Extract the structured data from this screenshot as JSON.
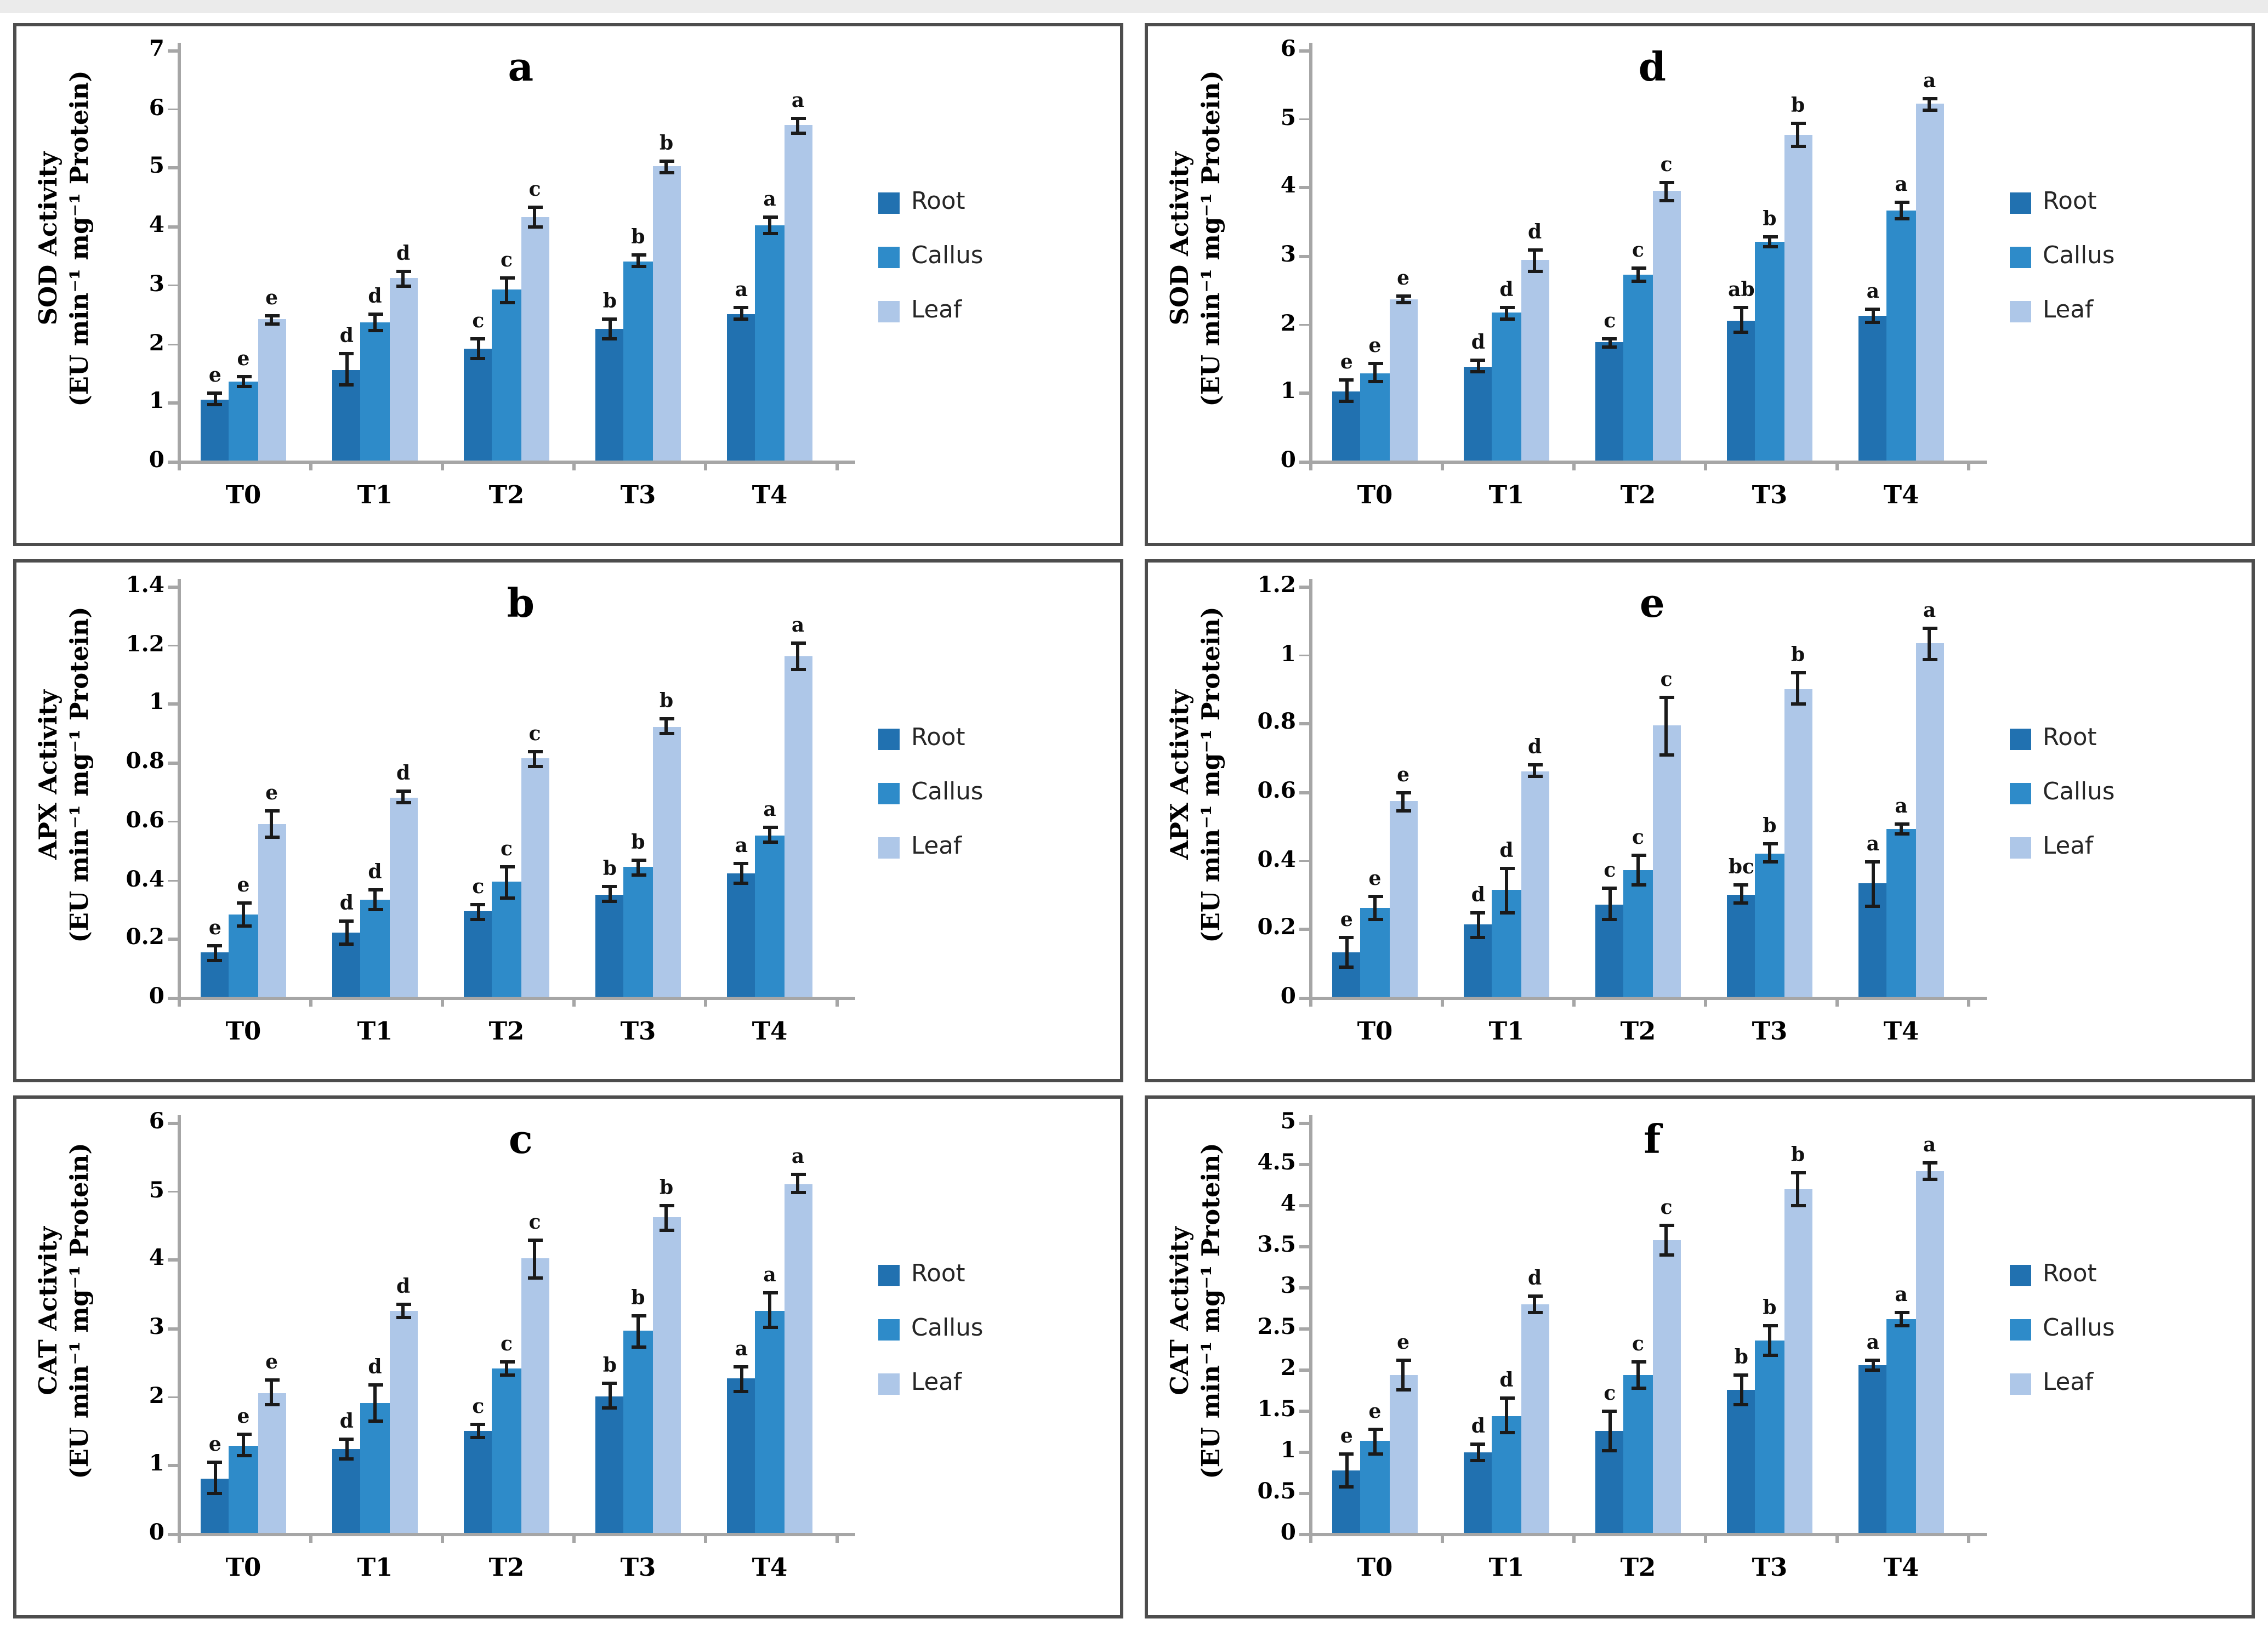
{
  "colors": {
    "root": "#2171B0",
    "callus": "#2E8BC9",
    "leaf": "#AEC7E8",
    "error_bar": "#1a1a1a",
    "axis": "#a6a6a6",
    "panel_border": "#4d4d4d"
  },
  "chart_data": [
    {
      "id": "a",
      "type": "bar",
      "panel_label": "a",
      "ylabel": "SOD Activity",
      "ylabel_units": "(EU min⁻¹ mg⁻¹ Protein)",
      "categories": [
        "T0",
        "T1",
        "T2",
        "T3",
        "T4"
      ],
      "ylim": [
        0,
        7
      ],
      "yticks": [
        0,
        1,
        2,
        3,
        4,
        5,
        6,
        7
      ],
      "ytick_labels": [
        "0",
        "1",
        "2",
        "3",
        "4",
        "5",
        "6",
        "7"
      ],
      "grid": false,
      "legend_position": "right",
      "series": [
        {
          "name": "Root",
          "values": [
            1.05,
            1.55,
            1.9,
            2.25,
            2.5
          ],
          "errors": [
            0.13,
            0.3,
            0.2,
            0.2,
            0.13
          ],
          "letters": [
            "e",
            "d",
            "c",
            "b",
            "a"
          ]
        },
        {
          "name": "Callus",
          "values": [
            1.35,
            2.35,
            2.9,
            3.4,
            4.0
          ],
          "errors": [
            0.12,
            0.17,
            0.25,
            0.12,
            0.17
          ],
          "letters": [
            "e",
            "d",
            "c",
            "b",
            "a"
          ]
        },
        {
          "name": "Leaf",
          "values": [
            2.4,
            3.1,
            4.15,
            5.0,
            5.7
          ],
          "errors": [
            0.1,
            0.15,
            0.2,
            0.12,
            0.15
          ],
          "letters": [
            "e",
            "d",
            "c",
            "b",
            "a"
          ]
        }
      ]
    },
    {
      "id": "d",
      "type": "bar",
      "panel_label": "d",
      "ylabel": "SOD Activity",
      "ylabel_units": "(EU min⁻¹ mg⁻¹ Protein)",
      "categories": [
        "T0",
        "T1",
        "T2",
        "T3",
        "T4"
      ],
      "ylim": [
        0,
        6
      ],
      "yticks": [
        0,
        1,
        2,
        3,
        4,
        5,
        6
      ],
      "ytick_labels": [
        "0",
        "1",
        "2",
        "3",
        "4",
        "5",
        "6"
      ],
      "grid": false,
      "legend_position": "right",
      "series": [
        {
          "name": "Root",
          "values": [
            1.02,
            1.38,
            1.72,
            2.05,
            2.12
          ],
          "errors": [
            0.17,
            0.1,
            0.08,
            0.2,
            0.12
          ],
          "letters": [
            "e",
            "d",
            "c",
            "ab",
            "a"
          ]
        },
        {
          "name": "Callus",
          "values": [
            1.28,
            2.15,
            2.72,
            3.2,
            3.65
          ],
          "errors": [
            0.15,
            0.1,
            0.12,
            0.1,
            0.15
          ],
          "letters": [
            "e",
            "d",
            "c",
            "b",
            "a"
          ]
        },
        {
          "name": "Leaf",
          "values": [
            2.35,
            2.92,
            3.93,
            4.75,
            5.2
          ],
          "errors": [
            0.08,
            0.18,
            0.15,
            0.2,
            0.1
          ],
          "letters": [
            "e",
            "d",
            "c",
            "b",
            "a"
          ]
        }
      ]
    },
    {
      "id": "b",
      "type": "bar",
      "panel_label": "b",
      "ylabel": "APX Activity",
      "ylabel_units": "(EU min⁻¹ mg⁻¹ Protein)",
      "categories": [
        "T0",
        "T1",
        "T2",
        "T3",
        "T4"
      ],
      "ylim": [
        0,
        1.4
      ],
      "yticks": [
        0,
        0.2,
        0.4,
        0.6,
        0.8,
        1,
        1.2,
        1.4
      ],
      "ytick_labels": [
        "0",
        "0.2",
        "0.4",
        "0.6",
        "0.8",
        "1",
        "1.2",
        "1.4"
      ],
      "grid": false,
      "legend_position": "right",
      "series": [
        {
          "name": "Root",
          "values": [
            0.15,
            0.22,
            0.29,
            0.35,
            0.42
          ],
          "errors": [
            0.03,
            0.045,
            0.03,
            0.03,
            0.04
          ],
          "letters": [
            "e",
            "d",
            "c",
            "b",
            "a"
          ]
        },
        {
          "name": "Callus",
          "values": [
            0.28,
            0.33,
            0.39,
            0.44,
            0.55
          ],
          "errors": [
            0.045,
            0.04,
            0.06,
            0.03,
            0.03
          ],
          "letters": [
            "e",
            "d",
            "c",
            "b",
            "a"
          ]
        },
        {
          "name": "Leaf",
          "values": [
            0.59,
            0.68,
            0.81,
            0.92,
            1.16
          ],
          "errors": [
            0.05,
            0.025,
            0.03,
            0.03,
            0.05
          ],
          "letters": [
            "e",
            "d",
            "c",
            "b",
            "a"
          ]
        }
      ]
    },
    {
      "id": "e",
      "type": "bar",
      "panel_label": "e",
      "ylabel": "APX Activity",
      "ylabel_units": "(EU min⁻¹ mg⁻¹ Protein)",
      "categories": [
        "T0",
        "T1",
        "T2",
        "T3",
        "T4"
      ],
      "ylim": [
        0,
        1.2
      ],
      "yticks": [
        0,
        0.2,
        0.4,
        0.6,
        0.8,
        1,
        1.2
      ],
      "ytick_labels": [
        "0",
        "0.2",
        "0.4",
        "0.6",
        "0.8",
        "1",
        "1.2"
      ],
      "grid": false,
      "legend_position": "right",
      "series": [
        {
          "name": "Root",
          "values": [
            0.13,
            0.21,
            0.27,
            0.3,
            0.33
          ],
          "errors": [
            0.05,
            0.04,
            0.05,
            0.03,
            0.07
          ],
          "letters": [
            "e",
            "d",
            "c",
            "bc",
            "a"
          ]
        },
        {
          "name": "Callus",
          "values": [
            0.26,
            0.31,
            0.37,
            0.42,
            0.49
          ],
          "errors": [
            0.04,
            0.07,
            0.05,
            0.03,
            0.02
          ],
          "letters": [
            "e",
            "d",
            "c",
            "b",
            "a"
          ]
        },
        {
          "name": "Leaf",
          "values": [
            0.57,
            0.66,
            0.79,
            0.9,
            1.03
          ],
          "errors": [
            0.03,
            0.02,
            0.09,
            0.05,
            0.05
          ],
          "letters": [
            "e",
            "d",
            "c",
            "b",
            "a"
          ]
        }
      ]
    },
    {
      "id": "c",
      "type": "bar",
      "panel_label": "c",
      "ylabel": "CAT Activity",
      "ylabel_units": "(EU min⁻¹ mg⁻¹ Protein)",
      "categories": [
        "T0",
        "T1",
        "T2",
        "T3",
        "T4"
      ],
      "ylim": [
        0,
        6
      ],
      "yticks": [
        0,
        1,
        2,
        3,
        4,
        5,
        6
      ],
      "ytick_labels": [
        "0",
        "1",
        "2",
        "3",
        "4",
        "5",
        "6"
      ],
      "grid": false,
      "legend_position": "right",
      "series": [
        {
          "name": "Root",
          "values": [
            0.8,
            1.22,
            1.48,
            2.0,
            2.25
          ],
          "errors": [
            0.25,
            0.17,
            0.12,
            0.2,
            0.2
          ],
          "letters": [
            "e",
            "d",
            "c",
            "b",
            "a"
          ]
        },
        {
          "name": "Callus",
          "values": [
            1.28,
            1.9,
            2.4,
            2.95,
            3.25
          ],
          "errors": [
            0.18,
            0.28,
            0.12,
            0.25,
            0.28
          ],
          "letters": [
            "e",
            "d",
            "c",
            "b",
            "a"
          ]
        },
        {
          "name": "Leaf",
          "values": [
            2.05,
            3.25,
            4.0,
            4.6,
            5.1
          ],
          "errors": [
            0.2,
            0.12,
            0.3,
            0.2,
            0.15
          ],
          "letters": [
            "e",
            "d",
            "c",
            "b",
            "a"
          ]
        }
      ]
    },
    {
      "id": "f",
      "type": "bar",
      "panel_label": "f",
      "ylabel": "CAT Activity",
      "ylabel_units": "(EU min⁻¹ mg⁻¹ Protein)",
      "categories": [
        "T0",
        "T1",
        "T2",
        "T3",
        "T4"
      ],
      "ylim": [
        0,
        5
      ],
      "yticks": [
        0,
        0.5,
        1,
        1.5,
        2,
        2.5,
        3,
        3.5,
        4,
        4.5,
        5
      ],
      "ytick_labels": [
        "0",
        "0.5",
        "1",
        "1.5",
        "2",
        "2.5",
        "3",
        "3.5",
        "4",
        "4.5",
        "5"
      ],
      "grid": false,
      "legend_position": "right",
      "series": [
        {
          "name": "Root",
          "values": [
            0.76,
            0.99,
            1.25,
            1.74,
            2.05
          ],
          "errors": [
            0.22,
            0.12,
            0.26,
            0.2,
            0.08
          ],
          "letters": [
            "e",
            "d",
            "c",
            "b",
            "a"
          ]
        },
        {
          "name": "Callus",
          "values": [
            1.12,
            1.43,
            1.93,
            2.35,
            2.6
          ],
          "errors": [
            0.17,
            0.23,
            0.18,
            0.2,
            0.1
          ],
          "letters": [
            "e",
            "d",
            "c",
            "b",
            "a"
          ]
        },
        {
          "name": "Leaf",
          "values": [
            1.93,
            2.78,
            3.56,
            4.18,
            4.4
          ],
          "errors": [
            0.2,
            0.12,
            0.2,
            0.22,
            0.12
          ],
          "letters": [
            "e",
            "d",
            "c",
            "b",
            "a"
          ]
        }
      ]
    }
  ]
}
